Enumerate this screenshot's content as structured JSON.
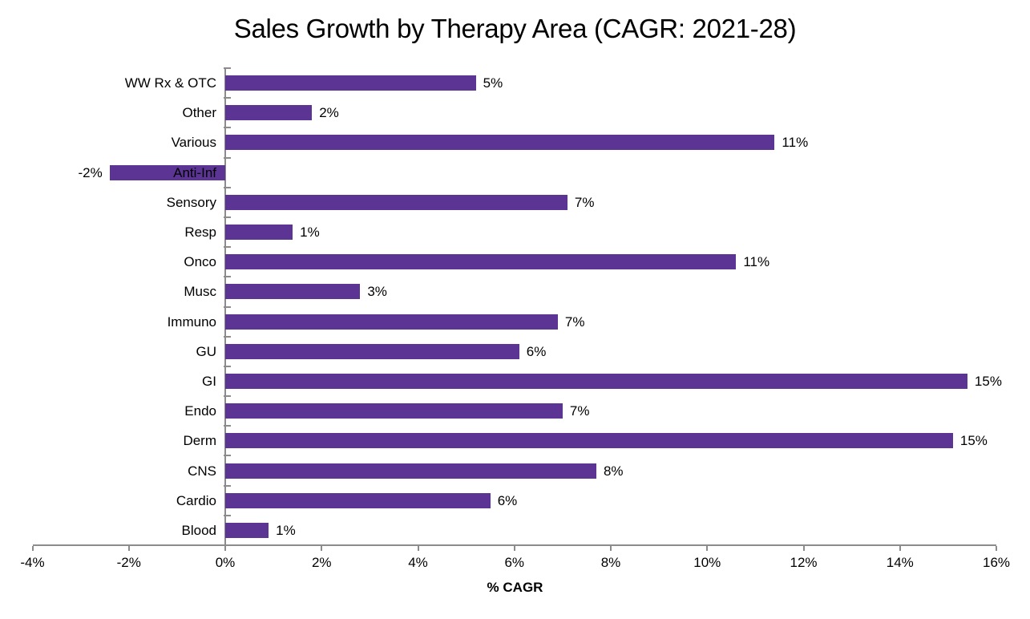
{
  "chart_data": {
    "type": "bar",
    "orientation": "horizontal",
    "title": "Sales Growth by Therapy Area (CAGR: 2021-28)",
    "xlabel": "% CAGR",
    "categories": [
      "WW Rx & OTC",
      "Other",
      "Various",
      "Anti-Inf",
      "Sensory",
      "Resp",
      "Onco",
      "Musc",
      "Immuno",
      "GU",
      "GI",
      "Endo",
      "Derm",
      "CNS",
      "Cardio",
      "Blood"
    ],
    "values": [
      5.2,
      1.8,
      11.4,
      -2.4,
      7.1,
      1.4,
      10.6,
      2.8,
      6.9,
      6.1,
      15.4,
      7.0,
      15.1,
      7.7,
      5.5,
      0.9
    ],
    "value_labels": [
      "5%",
      "2%",
      "11%",
      "-2%",
      "7%",
      "1%",
      "11%",
      "3%",
      "7%",
      "6%",
      "15%",
      "7%",
      "15%",
      "8%",
      "6%",
      "1%"
    ],
    "x_ticks": [
      -4,
      -2,
      0,
      2,
      4,
      6,
      8,
      10,
      12,
      14,
      16
    ],
    "x_tick_labels": [
      "-4%",
      "-2%",
      "0%",
      "2%",
      "4%",
      "6%",
      "8%",
      "10%",
      "12%",
      "14%",
      "16%"
    ],
    "xlim": [
      -4,
      16
    ],
    "grid": false,
    "legend": null,
    "bar_color": "#5C3494",
    "axis_color": "#8C8C8C",
    "text_color": "#000000",
    "background_color": "#FFFFFF"
  }
}
